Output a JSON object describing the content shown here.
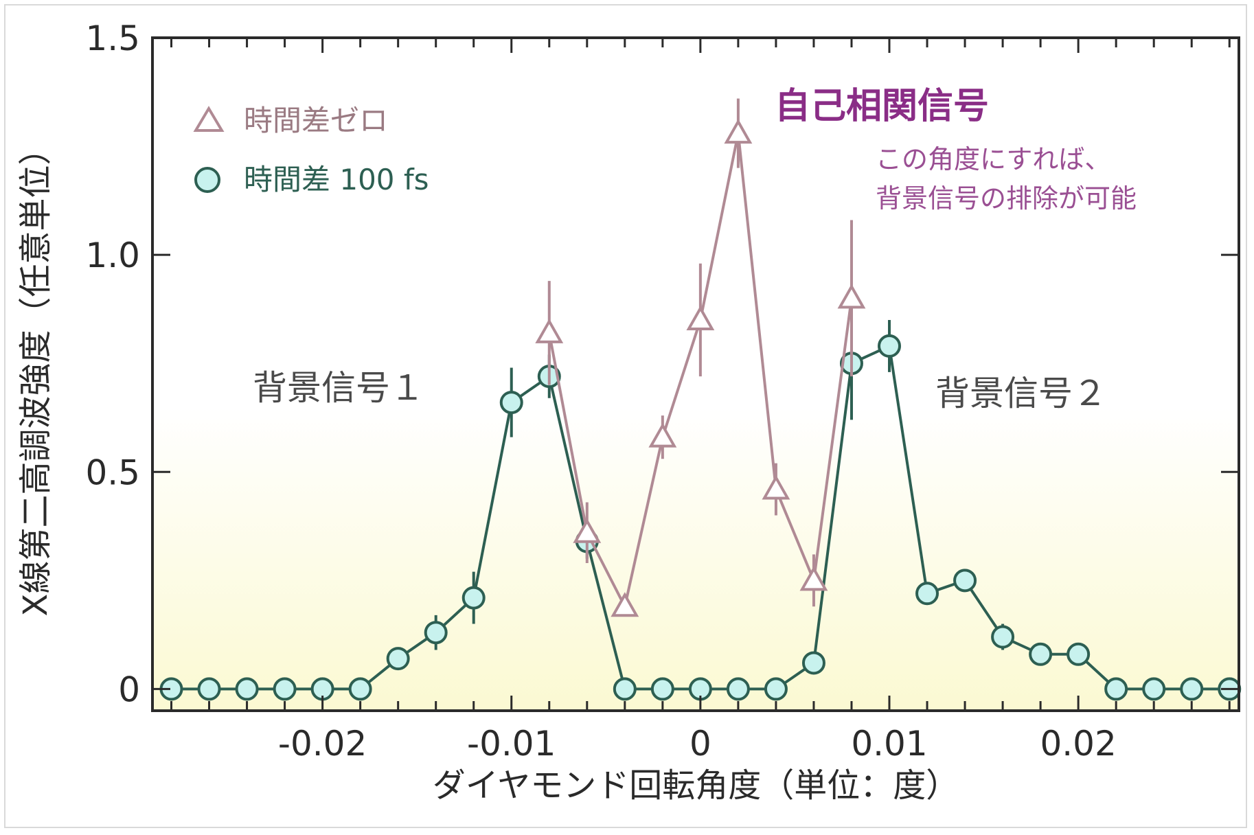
{
  "chart_data": {
    "type": "line",
    "xlabel": "ダイヤモンド回転角度（単位：度）",
    "ylabel": "X線第二高調波強度（任意単位）",
    "xlim": [
      -0.029,
      0.0285
    ],
    "ylim": [
      -0.05,
      1.5
    ],
    "x_ticks": [
      -0.02,
      -0.01,
      0,
      0.01,
      0.02
    ],
    "x_tick_labels": [
      "-0.02",
      "-0.01",
      "0",
      "0.01",
      "0.02"
    ],
    "y_ticks": [
      0,
      0.5,
      1.0,
      1.5
    ],
    "y_tick_labels": [
      "0",
      "0.5",
      "1.0",
      "1.5"
    ],
    "grid": false,
    "legend_position": "top-left",
    "series": [
      {
        "name": "時間差ゼロ",
        "marker": "triangle",
        "color": "#b08a94",
        "fill": "#ffffff",
        "x": [
          -0.008,
          -0.006,
          -0.004,
          -0.002,
          0.0,
          0.002,
          0.004,
          0.006,
          0.008
        ],
        "y": [
          0.82,
          0.36,
          0.19,
          0.58,
          0.85,
          1.28,
          0.46,
          0.25,
          0.9
        ],
        "err": [
          0.12,
          0.07,
          0.0,
          0.05,
          0.13,
          0.08,
          0.06,
          0.06,
          0.18
        ]
      },
      {
        "name": "時間差 100 fs",
        "marker": "circle",
        "color": "#2d5f52",
        "fill": "#c8f2ee",
        "x": [
          -0.028,
          -0.026,
          -0.024,
          -0.022,
          -0.02,
          -0.018,
          -0.016,
          -0.014,
          -0.012,
          -0.01,
          -0.008,
          -0.006,
          -0.004,
          -0.002,
          0.0,
          0.002,
          0.004,
          0.006,
          0.008,
          0.01,
          0.012,
          0.014,
          0.016,
          0.018,
          0.02,
          0.022,
          0.024,
          0.026,
          0.028
        ],
        "y": [
          0,
          0,
          0,
          0,
          0,
          0,
          0.07,
          0.13,
          0.21,
          0.66,
          0.72,
          0.34,
          0,
          0,
          0,
          0,
          0,
          0.06,
          0.75,
          0.79,
          0.22,
          0.25,
          0.12,
          0.08,
          0.08,
          0,
          0,
          0,
          0
        ],
        "err": [
          0,
          0,
          0,
          0,
          0,
          0,
          0,
          0.04,
          0.06,
          0.08,
          0.05,
          0.04,
          0,
          0,
          0,
          0,
          0,
          0,
          0.13,
          0.06,
          0,
          0,
          0.03,
          0,
          0,
          0,
          0,
          0,
          0
        ]
      }
    ],
    "annotations": {
      "title": "自己相関信号",
      "note_line1": "この角度にすれば、",
      "note_line2": "背景信号の排除が可能",
      "bg_label_1": "背景信号１",
      "bg_label_2": "背景信号２"
    },
    "colors": {
      "axis": "#2a2a2a",
      "title": "#8a2d86",
      "note": "#9a4f93",
      "gradient_top": "#ffffff",
      "gradient_bottom": "#fbf9d2"
    }
  }
}
